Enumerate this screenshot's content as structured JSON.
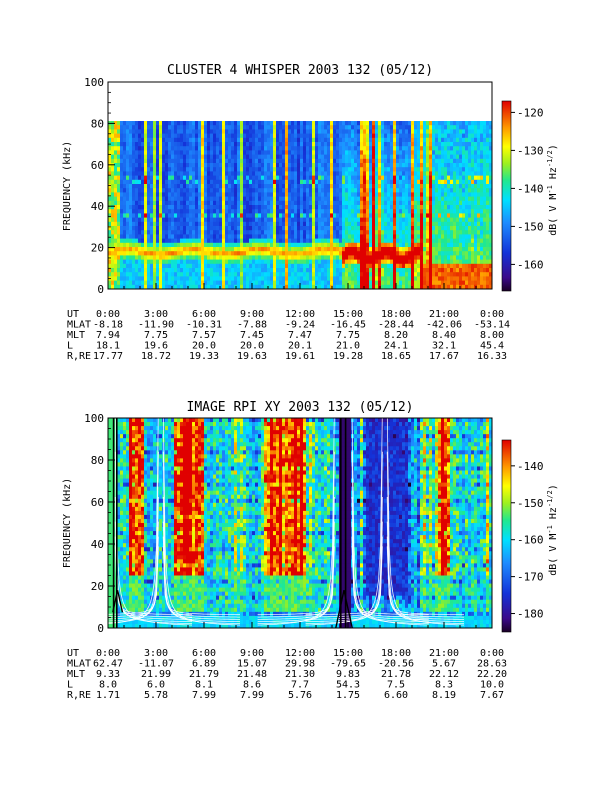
{
  "chart_data": [
    {
      "type": "heatmap",
      "title": "CLUSTER 4 WHISPER 2003 132 (05/12)",
      "ylabel": "FREQUENCY (kHz)",
      "ylim": [
        0,
        100
      ],
      "y_ticks": [
        "0",
        "20",
        "40",
        "60",
        "80",
        "100"
      ],
      "data_band_khz": [
        0,
        80
      ],
      "x_range_hours": [
        0,
        24
      ],
      "colorbar": {
        "label": "dB( V M^-1 Hz^-1/2 )",
        "range": [
          -167,
          -117
        ],
        "ticks": [
          "-120",
          "-130",
          "-140",
          "-150",
          "-160"
        ]
      },
      "ephemeris": {
        "rows": [
          {
            "label": "UT",
            "values": [
              "0:00",
              "3:00",
              "6:00",
              "9:00",
              "12:00",
              "15:00",
              "18:00",
              "21:00",
              "0:00"
            ]
          },
          {
            "label": "MLAT",
            "values": [
              "-8.18",
              "-11.90",
              "-10.31",
              "-7.88",
              "-9.24",
              "-16.45",
              "-28.44",
              "-42.06",
              "-53.14"
            ]
          },
          {
            "label": "MLT",
            "values": [
              "7.94",
              "7.75",
              "7.57",
              "7.45",
              "7.47",
              "7.75",
              "8.20",
              "8.40",
              "8.00"
            ]
          },
          {
            "label": "L",
            "values": [
              "18.1",
              "19.6",
              "20.0",
              "20.0",
              "20.1",
              "21.0",
              "24.1",
              "32.1",
              "45.4"
            ]
          },
          {
            "label": "R,RE",
            "values": [
              "17.77",
              "18.72",
              "19.33",
              "19.63",
              "19.61",
              "19.28",
              "18.65",
              "17.67",
              "16.33"
            ]
          }
        ]
      }
    },
    {
      "type": "heatmap",
      "title": "IMAGE RPI XY 2003 132 (05/12)",
      "ylabel": "FREQUENCY (kHz)",
      "ylim": [
        0,
        100
      ],
      "y_ticks": [
        "0",
        "20",
        "40",
        "60",
        "80",
        "100"
      ],
      "x_range_hours": [
        0,
        24
      ],
      "colorbar": {
        "label": "dB( V M^-1 Hz^-1/2 )",
        "range": [
          -185,
          -133
        ],
        "ticks": [
          "-140",
          "-150",
          "-160",
          "-170",
          "-180"
        ]
      },
      "ephemeris": {
        "rows": [
          {
            "label": "UT",
            "values": [
              "0:00",
              "3:00",
              "6:00",
              "9:00",
              "12:00",
              "15:00",
              "18:00",
              "21:00",
              "0:00"
            ]
          },
          {
            "label": "MLAT",
            "values": [
              "62.47",
              "-11.07",
              "6.89",
              "15.07",
              "29.98",
              "-79.65",
              "-20.56",
              "5.67",
              "28.63"
            ]
          },
          {
            "label": "MLT",
            "values": [
              "9.33",
              "21.99",
              "21.79",
              "21.48",
              "21.30",
              "9.83",
              "21.78",
              "22.12",
              "22.20"
            ]
          },
          {
            "label": "L",
            "values": [
              "8.0",
              "6.0",
              "8.1",
              "8.6",
              "7.7",
              "54.3",
              "7.5",
              "8.3",
              "10.0"
            ]
          },
          {
            "label": "R,RE",
            "values": [
              "1.71",
              "5.78",
              "7.99",
              "7.99",
              "5.76",
              "1.75",
              "6.60",
              "8.19",
              "7.67"
            ]
          }
        ]
      }
    }
  ]
}
